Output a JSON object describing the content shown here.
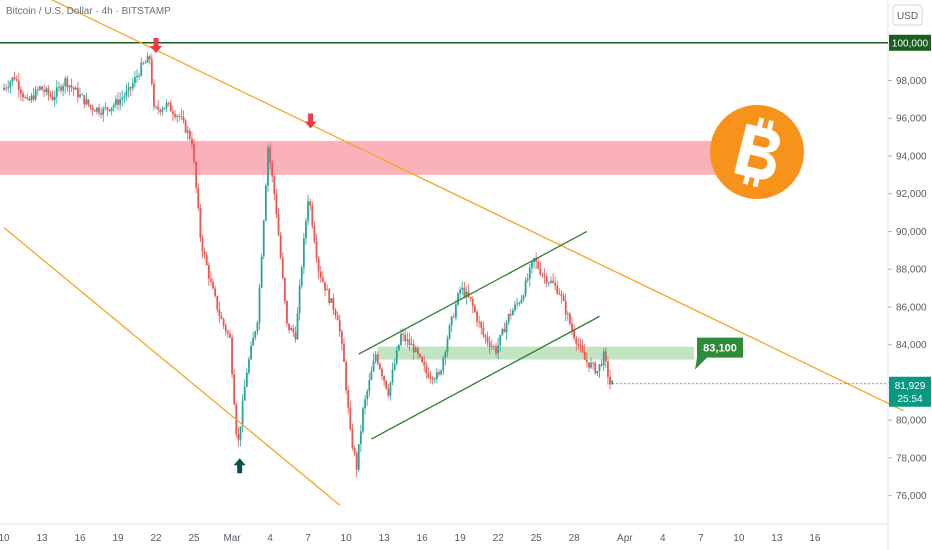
{
  "header": {
    "title": "Bitcoin / U.S. Dollar · 4h · BITSTAMP",
    "currency": "USD"
  },
  "chart_data": {
    "type": "candlestick",
    "title": "Bitcoin / U.S. Dollar · 4h · BITSTAMP",
    "y_unit": "USD",
    "ylim": [
      75000,
      102500
    ],
    "y_ticks": [
      76000,
      78000,
      80000,
      82000,
      84000,
      86000,
      88000,
      90000,
      92000,
      94000,
      96000,
      98000
    ],
    "x_ticks": [
      {
        "label": "10",
        "day": 0
      },
      {
        "label": "13",
        "day": 3
      },
      {
        "label": "16",
        "day": 6
      },
      {
        "label": "19",
        "day": 9
      },
      {
        "label": "22",
        "day": 12
      },
      {
        "label": "25",
        "day": 15
      },
      {
        "label": "Mar",
        "day": 18
      },
      {
        "label": "4",
        "day": 21
      },
      {
        "label": "7",
        "day": 24
      },
      {
        "label": "10",
        "day": 27
      },
      {
        "label": "13",
        "day": 30
      },
      {
        "label": "16",
        "day": 33
      },
      {
        "label": "19",
        "day": 36
      },
      {
        "label": "22",
        "day": 39
      },
      {
        "label": "25",
        "day": 42
      },
      {
        "label": "28",
        "day": 45
      },
      {
        "label": "Apr",
        "day": 49
      },
      {
        "label": "4",
        "day": 52
      },
      {
        "label": "7",
        "day": 55
      },
      {
        "label": "10",
        "day": 58
      },
      {
        "label": "13",
        "day": 61
      },
      {
        "label": "16",
        "day": 64
      }
    ],
    "price_path": [
      [
        0,
        97500
      ],
      [
        1,
        98200
      ],
      [
        2,
        96800
      ],
      [
        3,
        97600
      ],
      [
        4,
        97100
      ],
      [
        5,
        98000
      ],
      [
        6,
        97300
      ],
      [
        7,
        96600
      ],
      [
        8,
        96400
      ],
      [
        9,
        96800
      ],
      [
        10,
        97400
      ],
      [
        11,
        98700
      ],
      [
        11.7,
        99200
      ],
      [
        12,
        96400
      ],
      [
        13,
        96700
      ],
      [
        14,
        96100
      ],
      [
        15,
        94800
      ],
      [
        15.7,
        89500
      ],
      [
        16.5,
        87200
      ],
      [
        17.2,
        85500
      ],
      [
        18,
        84300
      ],
      [
        18.6,
        78500
      ],
      [
        19.3,
        82500
      ],
      [
        20.2,
        85500
      ],
      [
        21,
        94500
      ],
      [
        21.6,
        91500
      ],
      [
        22.5,
        85000
      ],
      [
        23.2,
        84500
      ],
      [
        23.7,
        88500
      ],
      [
        24.2,
        92000
      ],
      [
        25,
        88000
      ],
      [
        25.8,
        86500
      ],
      [
        26.5,
        85500
      ],
      [
        27,
        83000
      ],
      [
        27.5,
        79300
      ],
      [
        28,
        77500
      ],
      [
        28.5,
        80500
      ],
      [
        29.5,
        83500
      ],
      [
        30.5,
        81500
      ],
      [
        31.5,
        84500
      ],
      [
        32.5,
        83800
      ],
      [
        33.5,
        82500
      ],
      [
        34.5,
        82300
      ],
      [
        35.2,
        84500
      ],
      [
        36.2,
        87000
      ],
      [
        37,
        86300
      ],
      [
        38,
        84500
      ],
      [
        39,
        83700
      ],
      [
        40,
        85500
      ],
      [
        41,
        86500
      ],
      [
        42,
        88500
      ],
      [
        42.7,
        87700
      ],
      [
        43.5,
        87200
      ],
      [
        44,
        86800
      ],
      [
        45,
        84800
      ],
      [
        46,
        83200
      ],
      [
        47,
        82600
      ],
      [
        47.5,
        83400
      ],
      [
        48,
        81930
      ]
    ],
    "current_price": 81929,
    "current_label": "81,929",
    "countdown": "25:54",
    "key_level": {
      "value": 100000,
      "label": "100,000"
    },
    "resistance_zone": [
      93000,
      94800
    ],
    "support_zone": [
      83500,
      83900
    ],
    "target": {
      "value": 83100,
      "label": "83,100"
    },
    "trendlines": [
      {
        "name": "falling-wedge-upper",
        "from": [
          0,
          103500
        ],
        "to": [
          71,
          80500
        ],
        "color": "#f5a623"
      },
      {
        "name": "falling-wedge-lower",
        "from": [
          0,
          90200
        ],
        "to": [
          26.5,
          75500
        ],
        "color": "#f5a623"
      },
      {
        "name": "channel-upper",
        "from": [
          28,
          83500
        ],
        "to": [
          46,
          90000
        ],
        "color": "#2e7d32"
      },
      {
        "name": "channel-lower",
        "from": [
          29,
          79000
        ],
        "to": [
          47,
          85500
        ],
        "color": "#2e7d32"
      }
    ],
    "markers": [
      {
        "type": "down",
        "day": 12,
        "price": 99300,
        "color": "#f23645"
      },
      {
        "type": "down",
        "day": 24.2,
        "price": 95300,
        "color": "#f23645"
      },
      {
        "type": "up",
        "day": 18.6,
        "price": 78300,
        "color": "#0b4f52"
      }
    ],
    "colors": {
      "up": "#26a69a",
      "down": "#ef5350",
      "resistance": "#f9a3ad",
      "support": "#b7dfb5",
      "target_badge": "#2e8b3a",
      "level_line": "#1b5e20",
      "price_tag": "#089981"
    }
  }
}
